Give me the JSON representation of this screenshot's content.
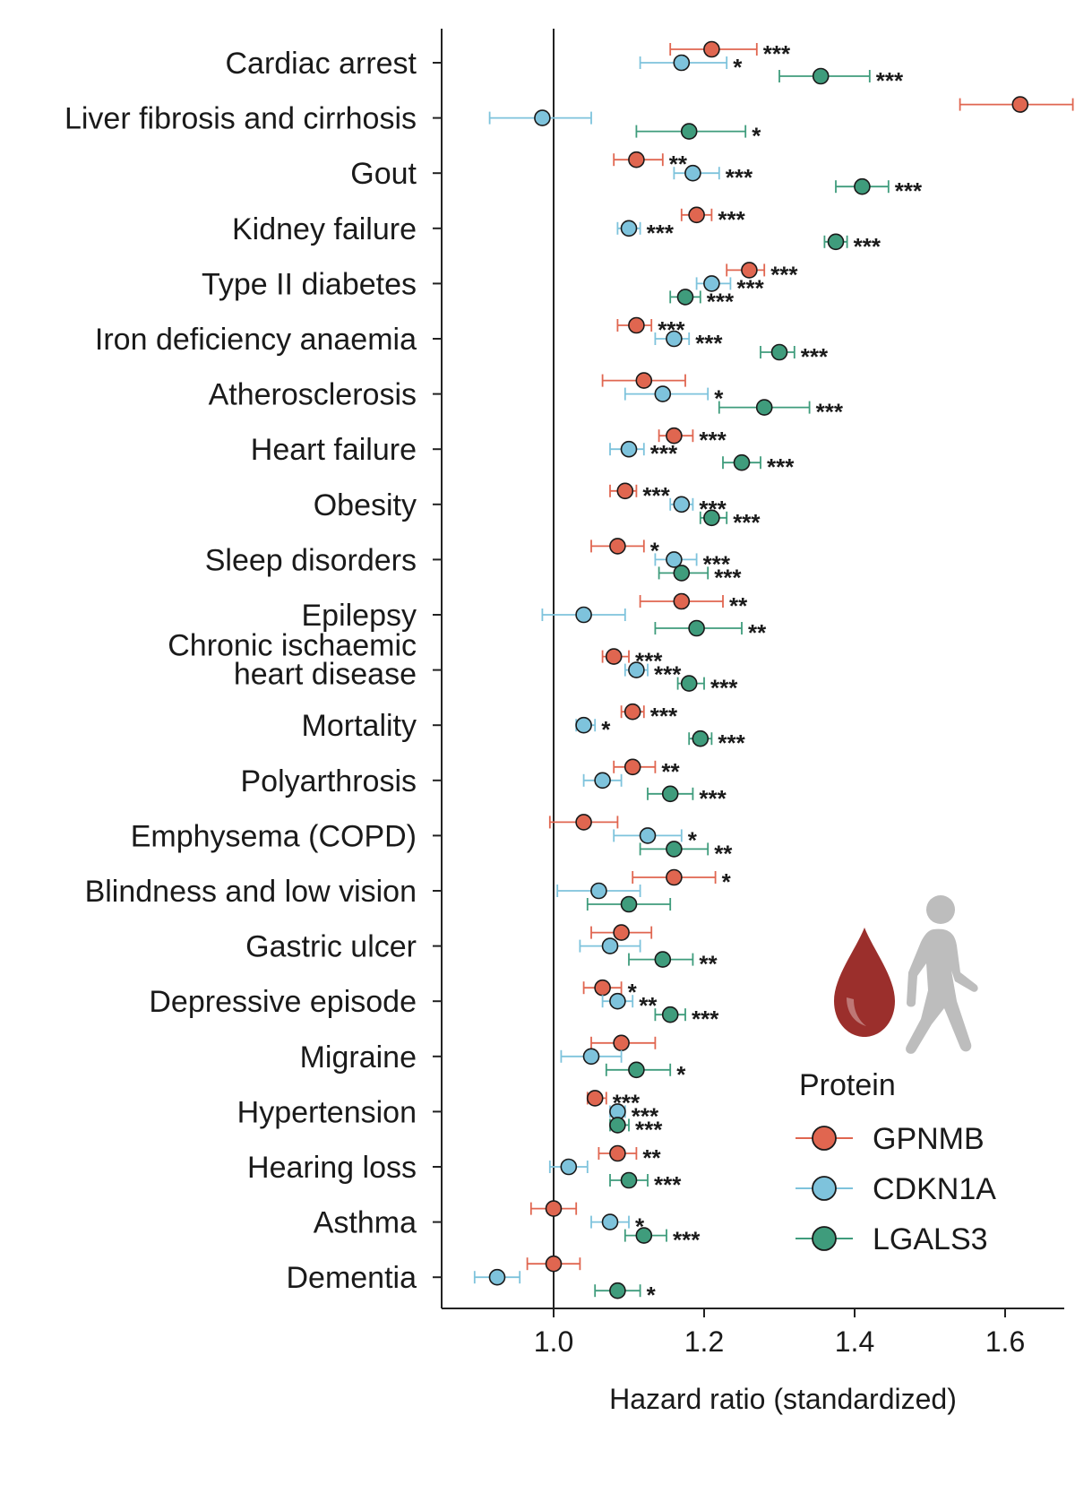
{
  "chart_data": {
    "type": "scatter",
    "subtype": "forest-plot",
    "title": "",
    "xlabel": "Hazard ratio (standardized)",
    "ylabel": "",
    "xlim": [
      0.885,
      1.745
    ],
    "xticks": [
      1.0,
      1.2,
      1.4,
      1.6
    ],
    "xtick_labels": [
      "1.0",
      "1.2",
      "1.4",
      "1.6"
    ],
    "reference_line": 1.0,
    "grid": false,
    "legend": {
      "title": "Protein",
      "position": "bottom-right"
    },
    "categories": [
      "Cardiac arrest",
      "Liver fibrosis and cirrhosis",
      "Gout",
      "Kidney failure",
      "Type II diabetes",
      "Iron deficiency anaemia",
      "Atherosclerosis",
      "Heart failure",
      "Obesity",
      "Sleep disorders",
      "Epilepsy",
      "Chronic ischaemic heart disease",
      "Mortality",
      "Polyarthrosis",
      "Emphysema (COPD)",
      "Blindness and low vision",
      "Gastric ulcer",
      "Depressive episode",
      "Migraine",
      "Hypertension",
      "Hearing loss",
      "Asthma",
      "Dementia"
    ],
    "series": [
      {
        "name": "GPNMB",
        "color": "#e06650",
        "points": [
          {
            "category": "Cardiac arrest",
            "hr": 1.21,
            "lo": 1.155,
            "hi": 1.27,
            "sig": "***"
          },
          {
            "category": "Liver fibrosis and cirrhosis",
            "hr": 1.62,
            "lo": 1.54,
            "hi": 1.69,
            "sig": "***"
          },
          {
            "category": "Gout",
            "hr": 1.11,
            "lo": 1.08,
            "hi": 1.145,
            "sig": "**"
          },
          {
            "category": "Kidney failure",
            "hr": 1.19,
            "lo": 1.17,
            "hi": 1.21,
            "sig": "***"
          },
          {
            "category": "Type II diabetes",
            "hr": 1.26,
            "lo": 1.23,
            "hi": 1.28,
            "sig": "***"
          },
          {
            "category": "Iron deficiency anaemia",
            "hr": 1.11,
            "lo": 1.085,
            "hi": 1.13,
            "sig": "***"
          },
          {
            "category": "Atherosclerosis",
            "hr": 1.12,
            "lo": 1.065,
            "hi": 1.175,
            "sig": ""
          },
          {
            "category": "Heart failure",
            "hr": 1.16,
            "lo": 1.14,
            "hi": 1.185,
            "sig": "***"
          },
          {
            "category": "Obesity",
            "hr": 1.095,
            "lo": 1.075,
            "hi": 1.11,
            "sig": "***"
          },
          {
            "category": "Sleep disorders",
            "hr": 1.085,
            "lo": 1.05,
            "hi": 1.12,
            "sig": "*"
          },
          {
            "category": "Epilepsy",
            "hr": 1.17,
            "lo": 1.115,
            "hi": 1.225,
            "sig": "**"
          },
          {
            "category": "Chronic ischaemic heart disease",
            "hr": 1.08,
            "lo": 1.065,
            "hi": 1.1,
            "sig": "***"
          },
          {
            "category": "Mortality",
            "hr": 1.105,
            "lo": 1.09,
            "hi": 1.12,
            "sig": "***"
          },
          {
            "category": "Polyarthrosis",
            "hr": 1.105,
            "lo": 1.08,
            "hi": 1.135,
            "sig": "**"
          },
          {
            "category": "Emphysema (COPD)",
            "hr": 1.04,
            "lo": 0.995,
            "hi": 1.085,
            "sig": ""
          },
          {
            "category": "Blindness and low vision",
            "hr": 1.16,
            "lo": 1.105,
            "hi": 1.215,
            "sig": "*"
          },
          {
            "category": "Gastric ulcer",
            "hr": 1.09,
            "lo": 1.05,
            "hi": 1.13,
            "sig": ""
          },
          {
            "category": "Depressive episode",
            "hr": 1.065,
            "lo": 1.04,
            "hi": 1.09,
            "sig": "*"
          },
          {
            "category": "Migraine",
            "hr": 1.09,
            "lo": 1.05,
            "hi": 1.135,
            "sig": ""
          },
          {
            "category": "Hypertension",
            "hr": 1.055,
            "lo": 1.045,
            "hi": 1.07,
            "sig": "***"
          },
          {
            "category": "Hearing loss",
            "hr": 1.085,
            "lo": 1.06,
            "hi": 1.11,
            "sig": "**"
          },
          {
            "category": "Asthma",
            "hr": 1.0,
            "lo": 0.97,
            "hi": 1.03,
            "sig": ""
          },
          {
            "category": "Dementia",
            "hr": 1.0,
            "lo": 0.965,
            "hi": 1.035,
            "sig": ""
          }
        ]
      },
      {
        "name": "CDKN1A",
        "color": "#7ec3dc",
        "points": [
          {
            "category": "Cardiac arrest",
            "hr": 1.17,
            "lo": 1.115,
            "hi": 1.23,
            "sig": "*"
          },
          {
            "category": "Liver fibrosis and cirrhosis",
            "hr": 0.985,
            "lo": 0.915,
            "hi": 1.05,
            "sig": ""
          },
          {
            "category": "Gout",
            "hr": 1.185,
            "lo": 1.16,
            "hi": 1.22,
            "sig": "***"
          },
          {
            "category": "Kidney failure",
            "hr": 1.1,
            "lo": 1.085,
            "hi": 1.115,
            "sig": "***"
          },
          {
            "category": "Type II diabetes",
            "hr": 1.21,
            "lo": 1.19,
            "hi": 1.235,
            "sig": "***"
          },
          {
            "category": "Iron deficiency anaemia",
            "hr": 1.16,
            "lo": 1.135,
            "hi": 1.18,
            "sig": "***"
          },
          {
            "category": "Atherosclerosis",
            "hr": 1.145,
            "lo": 1.095,
            "hi": 1.205,
            "sig": "*"
          },
          {
            "category": "Heart failure",
            "hr": 1.1,
            "lo": 1.075,
            "hi": 1.12,
            "sig": "***"
          },
          {
            "category": "Obesity",
            "hr": 1.17,
            "lo": 1.155,
            "hi": 1.185,
            "sig": "***"
          },
          {
            "category": "Sleep disorders",
            "hr": 1.16,
            "lo": 1.135,
            "hi": 1.19,
            "sig": "***"
          },
          {
            "category": "Epilepsy",
            "hr": 1.04,
            "lo": 0.985,
            "hi": 1.095,
            "sig": ""
          },
          {
            "category": "Chronic ischaemic heart disease",
            "hr": 1.11,
            "lo": 1.095,
            "hi": 1.125,
            "sig": "***"
          },
          {
            "category": "Mortality",
            "hr": 1.04,
            "lo": 1.03,
            "hi": 1.055,
            "sig": "*"
          },
          {
            "category": "Polyarthrosis",
            "hr": 1.065,
            "lo": 1.04,
            "hi": 1.09,
            "sig": ""
          },
          {
            "category": "Emphysema (COPD)",
            "hr": 1.125,
            "lo": 1.08,
            "hi": 1.17,
            "sig": "*"
          },
          {
            "category": "Blindness and low vision",
            "hr": 1.06,
            "lo": 1.005,
            "hi": 1.115,
            "sig": ""
          },
          {
            "category": "Gastric ulcer",
            "hr": 1.075,
            "lo": 1.035,
            "hi": 1.115,
            "sig": ""
          },
          {
            "category": "Depressive episode",
            "hr": 1.085,
            "lo": 1.065,
            "hi": 1.105,
            "sig": "**"
          },
          {
            "category": "Migraine",
            "hr": 1.05,
            "lo": 1.01,
            "hi": 1.09,
            "sig": ""
          },
          {
            "category": "Hypertension",
            "hr": 1.085,
            "lo": 1.075,
            "hi": 1.095,
            "sig": "***"
          },
          {
            "category": "Hearing loss",
            "hr": 1.02,
            "lo": 0.995,
            "hi": 1.045,
            "sig": ""
          },
          {
            "category": "Asthma",
            "hr": 1.075,
            "lo": 1.05,
            "hi": 1.1,
            "sig": "*"
          },
          {
            "category": "Dementia",
            "hr": 0.925,
            "lo": 0.895,
            "hi": 0.955,
            "sig": ""
          }
        ]
      },
      {
        "name": "LGALS3",
        "color": "#3f9c7c",
        "points": [
          {
            "category": "Cardiac arrest",
            "hr": 1.355,
            "lo": 1.3,
            "hi": 1.42,
            "sig": "***"
          },
          {
            "category": "Liver fibrosis and cirrhosis",
            "hr": 1.18,
            "lo": 1.11,
            "hi": 1.255,
            "sig": "*"
          },
          {
            "category": "Gout",
            "hr": 1.41,
            "lo": 1.375,
            "hi": 1.445,
            "sig": "***"
          },
          {
            "category": "Kidney failure",
            "hr": 1.375,
            "lo": 1.36,
            "hi": 1.39,
            "sig": "***"
          },
          {
            "category": "Type II diabetes",
            "hr": 1.175,
            "lo": 1.155,
            "hi": 1.195,
            "sig": "***"
          },
          {
            "category": "Iron deficiency anaemia",
            "hr": 1.3,
            "lo": 1.275,
            "hi": 1.32,
            "sig": "***"
          },
          {
            "category": "Atherosclerosis",
            "hr": 1.28,
            "lo": 1.22,
            "hi": 1.34,
            "sig": "***"
          },
          {
            "category": "Heart failure",
            "hr": 1.25,
            "lo": 1.225,
            "hi": 1.275,
            "sig": "***"
          },
          {
            "category": "Obesity",
            "hr": 1.21,
            "lo": 1.195,
            "hi": 1.23,
            "sig": "***"
          },
          {
            "category": "Sleep disorders",
            "hr": 1.17,
            "lo": 1.14,
            "hi": 1.205,
            "sig": "***"
          },
          {
            "category": "Epilepsy",
            "hr": 1.19,
            "lo": 1.135,
            "hi": 1.25,
            "sig": "**"
          },
          {
            "category": "Chronic ischaemic heart disease",
            "hr": 1.18,
            "lo": 1.165,
            "hi": 1.2,
            "sig": "***"
          },
          {
            "category": "Mortality",
            "hr": 1.195,
            "lo": 1.18,
            "hi": 1.21,
            "sig": "***"
          },
          {
            "category": "Polyarthrosis",
            "hr": 1.155,
            "lo": 1.125,
            "hi": 1.185,
            "sig": "***"
          },
          {
            "category": "Emphysema (COPD)",
            "hr": 1.16,
            "lo": 1.115,
            "hi": 1.205,
            "sig": "**"
          },
          {
            "category": "Blindness and low vision",
            "hr": 1.1,
            "lo": 1.045,
            "hi": 1.155,
            "sig": ""
          },
          {
            "category": "Gastric ulcer",
            "hr": 1.145,
            "lo": 1.1,
            "hi": 1.185,
            "sig": "**"
          },
          {
            "category": "Depressive episode",
            "hr": 1.155,
            "lo": 1.135,
            "hi": 1.175,
            "sig": "***"
          },
          {
            "category": "Migraine",
            "hr": 1.11,
            "lo": 1.07,
            "hi": 1.155,
            "sig": "*"
          },
          {
            "category": "Hypertension",
            "hr": 1.085,
            "lo": 1.075,
            "hi": 1.1,
            "sig": "***"
          },
          {
            "category": "Hearing loss",
            "hr": 1.1,
            "lo": 1.075,
            "hi": 1.125,
            "sig": "***"
          },
          {
            "category": "Asthma",
            "hr": 1.12,
            "lo": 1.095,
            "hi": 1.15,
            "sig": "***"
          },
          {
            "category": "Dementia",
            "hr": 1.085,
            "lo": 1.055,
            "hi": 1.115,
            "sig": "*"
          }
        ]
      }
    ]
  },
  "icons": {
    "blood": {
      "name": "blood-drop-icon",
      "color": "#9b2f2c"
    },
    "person": {
      "name": "walking-person-icon",
      "color": "#bdbdbd"
    }
  }
}
